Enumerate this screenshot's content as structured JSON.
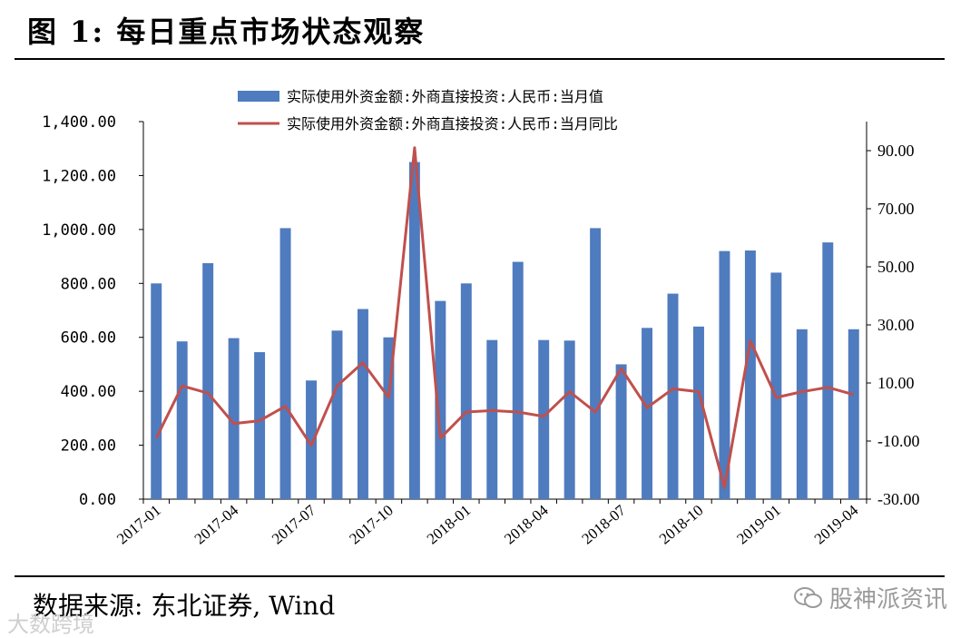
{
  "header": {
    "title": "图 1:  每日重点市场状态观察"
  },
  "footer": {
    "source": "数据来源: 东北证券, Wind",
    "watermark_left": "大数跨境",
    "watermark_right": "股神派资讯",
    "watermark_icon": "wechat-icon"
  },
  "colors": {
    "bar": "#4F7BBF",
    "line": "#C0504D"
  },
  "chart_data": {
    "type": "bar",
    "series": [
      {
        "name": "实际使用外资金额:外商直接投资:人民币:当月值",
        "type": "bar",
        "axis": "left",
        "values": [
          800,
          585,
          875,
          597,
          545,
          1005,
          440,
          625,
          705,
          600,
          1250,
          735,
          800,
          590,
          880,
          590,
          588,
          1005,
          500,
          635,
          762,
          640,
          920,
          922,
          840,
          630,
          952,
          630
        ]
      },
      {
        "name": "实际使用外资金额:外商直接投资:人民币:当月同比",
        "type": "line",
        "axis": "right",
        "values": [
          -9,
          9,
          6.5,
          -4,
          -3,
          2,
          -11.5,
          9,
          17,
          5,
          91,
          -9,
          0,
          0.5,
          0,
          -1.5,
          7,
          0,
          15,
          1.5,
          8,
          7,
          -26,
          24.5,
          5,
          7,
          8.5,
          6
        ]
      }
    ],
    "x": [
      "2017-01",
      "2017-02",
      "2017-03",
      "2017-04",
      "2017-05",
      "2017-06",
      "2017-07",
      "2017-08",
      "2017-09",
      "2017-10",
      "2017-11",
      "2017-12",
      "2018-01",
      "2018-02",
      "2018-03",
      "2018-04",
      "2018-05",
      "2018-06",
      "2018-07",
      "2018-08",
      "2018-09",
      "2018-10",
      "2018-11",
      "2018-12",
      "2019-01",
      "2019-02",
      "2019-03",
      "2019-04"
    ],
    "x_tick_labels": [
      "2017-01",
      "2017-04",
      "2017-07",
      "2017-10",
      "2018-01",
      "2018-04",
      "2018-07",
      "2018-10",
      "2019-01",
      "2019-04"
    ],
    "y_left": {
      "ylim": [
        0,
        1400
      ],
      "ticks": [
        "0.00",
        "200.00",
        "400.00",
        "600.00",
        "800.00",
        "1,000.00",
        "1,200.00",
        "1,400.00"
      ]
    },
    "y_right": {
      "ylim": [
        -30,
        100
      ],
      "ticks": [
        "-30.00",
        "-10.00",
        "10.00",
        "30.00",
        "50.00",
        "70.00",
        "90.00"
      ]
    },
    "legend_position": "top-center",
    "grid": false
  }
}
